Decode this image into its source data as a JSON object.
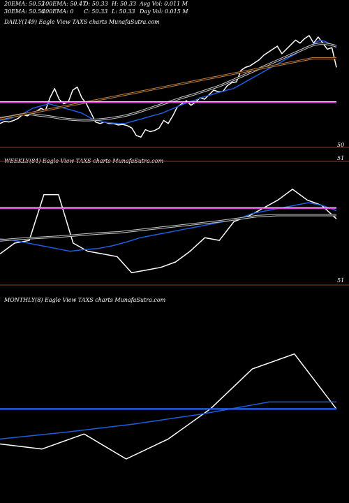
{
  "header": {
    "row1": [
      "20EMA: 50.52",
      "100EMA: 50.47",
      "O: 50.33",
      "H: 50.33",
      "Avg Vol: 0.011 M"
    ],
    "row2": [
      "30EMA: 50.56",
      "200EMA: 0",
      "C: 50.33",
      "L: 50.33",
      "Day Vol: 0.015 M"
    ]
  },
  "colors": {
    "background": "#000000",
    "price": "#ffffff",
    "ema_fast": "#1f5de0",
    "ema_slow": "#c8c8c8",
    "ema_long": "#c08040",
    "reference": "#e040e0",
    "divider": "#8b4513"
  },
  "chart_data": [
    {
      "type": "line",
      "title": "DAILY(149) Eagle  View  TAXS charts MunafaSutra.com",
      "y_axis_labels": [
        "50",
        "51"
      ],
      "series": [
        {
          "role": "price",
          "values": [
            51.85,
            51.92,
            51.9,
            51.95,
            52.02,
            52.15,
            52.1,
            52.18,
            52.25,
            52.35,
            52.28,
            52.7,
            53.0,
            52.65,
            52.5,
            52.55,
            52.95,
            53.05,
            52.7,
            52.5,
            52.2,
            51.9,
            51.85,
            51.9,
            51.85,
            51.85,
            51.8,
            51.82,
            51.78,
            51.7,
            51.45,
            51.4,
            51.65,
            51.58,
            51.62,
            51.7,
            51.95,
            51.85,
            52.1,
            52.4,
            52.5,
            52.6,
            52.45,
            52.55,
            52.7,
            52.65,
            52.8,
            52.95,
            52.9,
            52.9,
            53.1,
            53.2,
            53.22,
            53.6,
            53.7,
            53.75,
            53.85,
            53.95,
            54.1,
            54.2,
            54.3,
            54.4,
            54.15,
            54.3,
            54.45,
            54.6,
            54.5,
            54.65,
            54.75,
            54.5,
            54.7,
            54.5,
            54.3,
            54.35,
            53.7
          ]
        },
        {
          "role": "ema20",
          "values": [
            51.95,
            51.98,
            52.02,
            52.1,
            52.15,
            52.25,
            52.35,
            52.4,
            52.45,
            52.5,
            52.45,
            52.4,
            52.35,
            52.3,
            52.25,
            52.2,
            52.1,
            52.0,
            51.95,
            51.9,
            51.88,
            51.86,
            51.85,
            51.85,
            51.9,
            51.95,
            52.0,
            52.05,
            52.1,
            52.15,
            52.2,
            52.28,
            52.35,
            52.43,
            52.5,
            52.57,
            52.62,
            52.7,
            52.75,
            52.8,
            52.86,
            52.9,
            52.96,
            53.0,
            53.1,
            53.2,
            53.3,
            53.4,
            53.5,
            53.6,
            53.7,
            53.8,
            53.9,
            54.0,
            54.1,
            54.2,
            54.3,
            54.4,
            54.5,
            54.6,
            54.55,
            54.45,
            54.35
          ]
        },
        {
          "role": "ema30",
          "values": [
            52.02,
            52.05,
            52.08,
            52.12,
            52.15,
            52.17,
            52.15,
            52.12,
            52.1,
            52.08,
            52.05,
            52.02,
            52.0,
            51.98,
            51.97,
            51.96,
            51.96,
            51.97,
            51.98,
            52.0,
            52.02,
            52.05,
            52.08,
            52.12,
            52.17,
            52.22,
            52.28,
            52.34,
            52.4,
            52.46,
            52.52,
            52.58,
            52.64,
            52.7,
            52.75,
            52.8,
            52.86,
            52.92,
            52.98,
            53.04,
            53.1,
            53.18,
            53.26,
            53.34,
            53.42,
            53.5,
            53.58,
            53.66,
            53.74,
            53.82,
            53.9,
            53.98,
            54.06,
            54.14,
            54.22,
            54.3,
            54.38,
            54.45,
            54.48,
            54.48,
            54.45,
            54.4
          ]
        },
        {
          "role": "ema100",
          "values": [
            52.0,
            52.05,
            52.1,
            52.15,
            52.2,
            52.25,
            52.3,
            52.35,
            52.4,
            52.45,
            52.5,
            52.55,
            52.6,
            52.65,
            52.7,
            52.75,
            52.8,
            52.85,
            52.9,
            52.95,
            53.0,
            53.05,
            53.1,
            53.15,
            53.2,
            53.25,
            53.3,
            53.35,
            53.4,
            53.45,
            53.5,
            53.55,
            53.6,
            53.65,
            53.7,
            53.75,
            53.8,
            53.85,
            53.9,
            53.95,
            54.0,
            54.0,
            54.0,
            54.0
          ]
        },
        {
          "role": "reference",
          "values": [
            52.55,
            52.55
          ]
        }
      ]
    },
    {
      "type": "line",
      "title": "WEEKLY(84) Eagle  View  TAXS charts MunafaSutra.com",
      "y_axis_labels": [
        "51"
      ],
      "series": [
        {
          "role": "price",
          "values": [
            51.7,
            51.9,
            51.95,
            52.8,
            52.8,
            51.9,
            51.75,
            51.7,
            51.65,
            51.35,
            51.4,
            51.45,
            51.55,
            51.75,
            52.0,
            51.95,
            52.3,
            52.4,
            52.55,
            52.7,
            52.9,
            52.7,
            52.6,
            52.35
          ]
        },
        {
          "role": "ema20",
          "values": [
            51.98,
            51.95,
            51.9,
            51.85,
            51.8,
            51.75,
            51.78,
            51.8,
            51.85,
            51.92,
            52.0,
            52.05,
            52.1,
            52.15,
            52.2,
            52.25,
            52.3,
            52.35,
            52.45,
            52.5,
            52.55,
            52.6,
            52.65,
            52.6,
            52.5
          ]
        },
        {
          "role": "ema30",
          "values": [
            51.95,
            51.98,
            52.0,
            52.02,
            52.05,
            52.08,
            52.1,
            52.14,
            52.18,
            52.22,
            52.26,
            52.3,
            52.35,
            52.4,
            52.42,
            52.42,
            52.42,
            52.42
          ]
        },
        {
          "role": "reference",
          "values": [
            52.55,
            52.55
          ]
        }
      ]
    },
    {
      "type": "line",
      "title": "MONTHLY(8) Eagle  View  TAXS charts MunafaSutra.com",
      "y_axis_labels": [],
      "series": [
        {
          "role": "price",
          "values": [
            51.0,
            50.95,
            51.1,
            50.85,
            51.05,
            51.35,
            51.75,
            51.9,
            51.35
          ]
        },
        {
          "role": "ema20",
          "values": [
            51.05,
            51.12,
            51.2,
            51.3,
            51.42,
            51.42
          ]
        },
        {
          "role": "reference",
          "values": [
            51.35,
            51.35
          ]
        }
      ]
    }
  ]
}
